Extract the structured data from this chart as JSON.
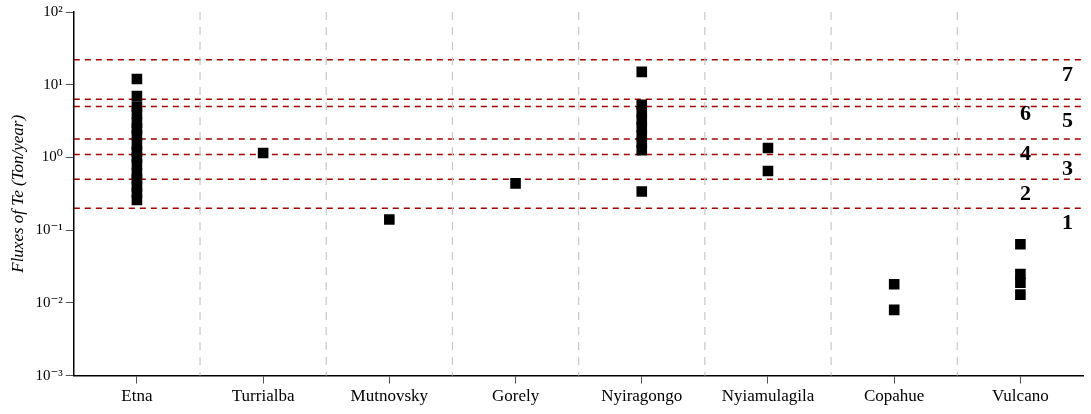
{
  "chart_data": {
    "type": "scatter",
    "ylabel": "Fluxes of Te (Ton/year)",
    "categories": [
      "Etna",
      "Turrialba",
      "Mutnovsky",
      "Gorely",
      "Nyiragongo",
      "Nyiamulagila",
      "Copahue",
      "Vulcano"
    ],
    "series": [
      {
        "color": "#000000",
        "x": [
          "Etna",
          "Etna",
          "Etna",
          "Etna",
          "Etna",
          "Etna",
          "Etna",
          "Etna",
          "Etna",
          "Etna",
          "Etna",
          "Etna",
          "Etna",
          "Etna",
          "Etna",
          "Etna",
          "Turrialba",
          "Mutnovsky",
          "Gorely",
          "Nyiragongo",
          "Nyiragongo",
          "Nyiragongo",
          "Nyiragongo",
          "Nyiragongo",
          "Nyiragongo",
          "Nyiragongo",
          "Nyiragongo",
          "Nyiragongo",
          "Nyiamulagila",
          "Nyiamulagila",
          "Copahue",
          "Copahue",
          "Vulcano",
          "Vulcano",
          "Vulcano",
          "Vulcano"
        ],
        "values": [
          12,
          7,
          5,
          4,
          3,
          2.5,
          2,
          1.5,
          1.2,
          1,
          0.8,
          0.6,
          0.5,
          0.4,
          0.33,
          0.26,
          1.15,
          0.14,
          0.44,
          15,
          5.3,
          4.2,
          3.3,
          2.6,
          2,
          1.6,
          1.26,
          0.34,
          1.35,
          0.65,
          0.018,
          0.008,
          0.064,
          0.025,
          0.019,
          0.013
        ]
      }
    ],
    "log": "y",
    "ylim": [
      0.001,
      100
    ],
    "yticks": [
      {
        "value": 0.001,
        "label": "10⁻³"
      },
      {
        "value": 0.01,
        "label": "10⁻²"
      },
      {
        "value": 0.1,
        "label": "10⁻¹"
      },
      {
        "value": 1,
        "label": "10⁰"
      },
      {
        "value": 10,
        "label": "10¹"
      },
      {
        "value": 100,
        "label": "10²"
      }
    ],
    "grid": "x",
    "marker": "square",
    "legend": false,
    "ref_lines": [
      {
        "axis": "y",
        "value": 22,
        "color": "#a00000",
        "line_style": "dashed"
      },
      {
        "axis": "y",
        "value": 6.3,
        "color": "#a00000",
        "line_style": "dashed"
      },
      {
        "axis": "y",
        "value": 5,
        "color": "#a00000",
        "line_style": "dashed"
      },
      {
        "axis": "y",
        "value": 1.8,
        "color": "#a00000",
        "line_style": "dashed"
      },
      {
        "axis": "y",
        "value": 1.1,
        "color": "#a00000",
        "line_style": "dashed"
      },
      {
        "axis": "y",
        "value": 0.5,
        "color": "#a00000",
        "line_style": "dashed"
      },
      {
        "axis": "y",
        "value": 0.2,
        "color": "#a00000",
        "line_style": "dashed"
      }
    ],
    "annotations": [
      "1",
      "2",
      "3",
      "4",
      "5",
      "6",
      "7"
    ]
  }
}
